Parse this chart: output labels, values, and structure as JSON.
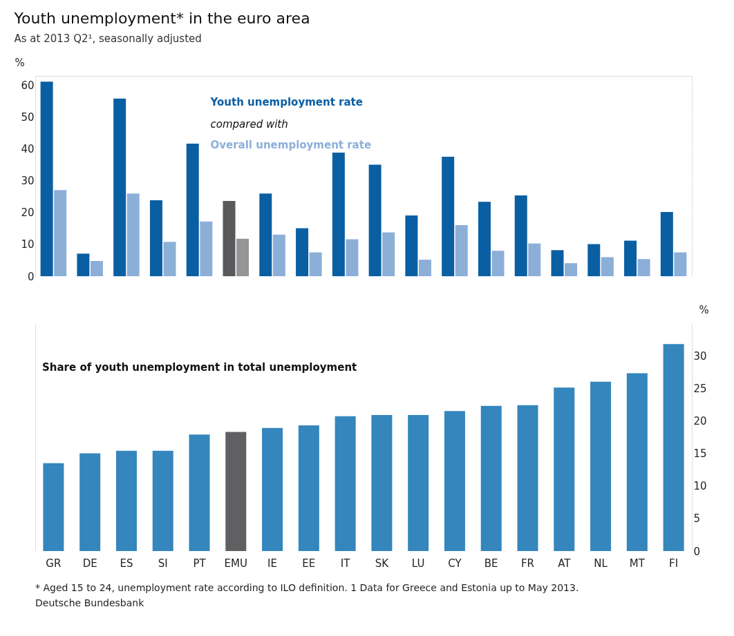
{
  "chart_data": [
    {
      "type": "bar",
      "title": "Youth unemployment* in the euro area",
      "subtitle": "As at 2013 Q2¹, seasonally adjusted",
      "categories": [
        null,
        null,
        null,
        null,
        null,
        null,
        null,
        null,
        null,
        null,
        null,
        null,
        null,
        null,
        null,
        null,
        null,
        null
      ],
      "series": [
        {
          "name": "Youth unemployment rate",
          "color": "#0a5fa3",
          "colors": [
            "#0a5fa3",
            "#0a5fa3",
            "#0a5fa3",
            "#0a5fa3",
            "#0a5fa3",
            "#5a5a5c",
            "#0a5fa3",
            "#0a5fa3",
            "#0a5fa3",
            "#0a5fa3",
            "#0a5fa3",
            "#0a5fa3",
            "#0a5fa3",
            "#0a5fa3",
            "#0a5fa3",
            "#0a5fa3",
            "#0a5fa3",
            "#0a5fa3"
          ],
          "values": [
            61.2,
            7.1,
            55.9,
            23.9,
            41.7,
            23.7,
            26.0,
            15.1,
            38.9,
            35.1,
            19.1,
            37.6,
            23.4,
            25.4,
            8.2,
            10.1,
            11.2,
            20.2
          ]
        },
        {
          "name": "Overall unemployment rate",
          "color": "#8cafd8",
          "colors": [
            "#8cafd8",
            "#8cafd8",
            "#8cafd8",
            "#8cafd8",
            "#8cafd8",
            "#959597",
            "#8cafd8",
            "#8cafd8",
            "#8cafd8",
            "#8cafd8",
            "#8cafd8",
            "#8cafd8",
            "#8cafd8",
            "#8cafd8",
            "#8cafd8",
            "#8cafd8",
            "#8cafd8",
            "#8cafd8"
          ],
          "values": [
            27.1,
            4.8,
            26.0,
            10.8,
            17.2,
            11.8,
            13.1,
            7.5,
            11.6,
            13.8,
            5.2,
            16.1,
            8.0,
            10.3,
            4.1,
            6.0,
            5.4,
            7.5
          ]
        }
      ],
      "ylabel": "%",
      "ylim": [
        0,
        63
      ],
      "yticks": [
        0,
        10,
        20,
        30,
        40,
        50,
        60
      ],
      "grid": "y",
      "tick_labels": "y",
      "annotations": [
        "compared with"
      ]
    },
    {
      "type": "bar",
      "title": "Share of youth unemployment in total unemployment",
      "categories": [
        "GR",
        "DE",
        "ES",
        "SI",
        "PT",
        "EMU",
        "IE",
        "EE",
        "IT",
        "SK",
        "LU",
        "CY",
        "BE",
        "FR",
        "AT",
        "NL",
        "MT",
        "FI"
      ],
      "values": [
        13.5,
        15.0,
        15.4,
        15.4,
        17.9,
        18.3,
        18.9,
        19.3,
        20.7,
        20.9,
        20.9,
        21.5,
        22.3,
        22.4,
        25.1,
        26.0,
        27.3,
        31.8
      ],
      "colors": [
        "#3486bd",
        "#3486bd",
        "#3486bd",
        "#3486bd",
        "#3486bd",
        "#606062",
        "#3486bd",
        "#3486bd",
        "#3486bd",
        "#3486bd",
        "#3486bd",
        "#3486bd",
        "#3486bd",
        "#3486bd",
        "#3486bd",
        "#3486bd",
        "#3486bd",
        "#3486bd"
      ],
      "ylabel": "%",
      "ylim": [
        0,
        35
      ],
      "yticks": [
        0,
        5,
        10,
        15,
        20,
        25,
        30,
        {
          "value": 35,
          "label": null
        }
      ],
      "grid": "y",
      "annotations": [
        "* Aged 15 to 24, unemployment rate according to ILO definition. 1 Data for Greece and Estonia up to May 2013.",
        "Deutsche Bundesbank"
      ]
    }
  ]
}
